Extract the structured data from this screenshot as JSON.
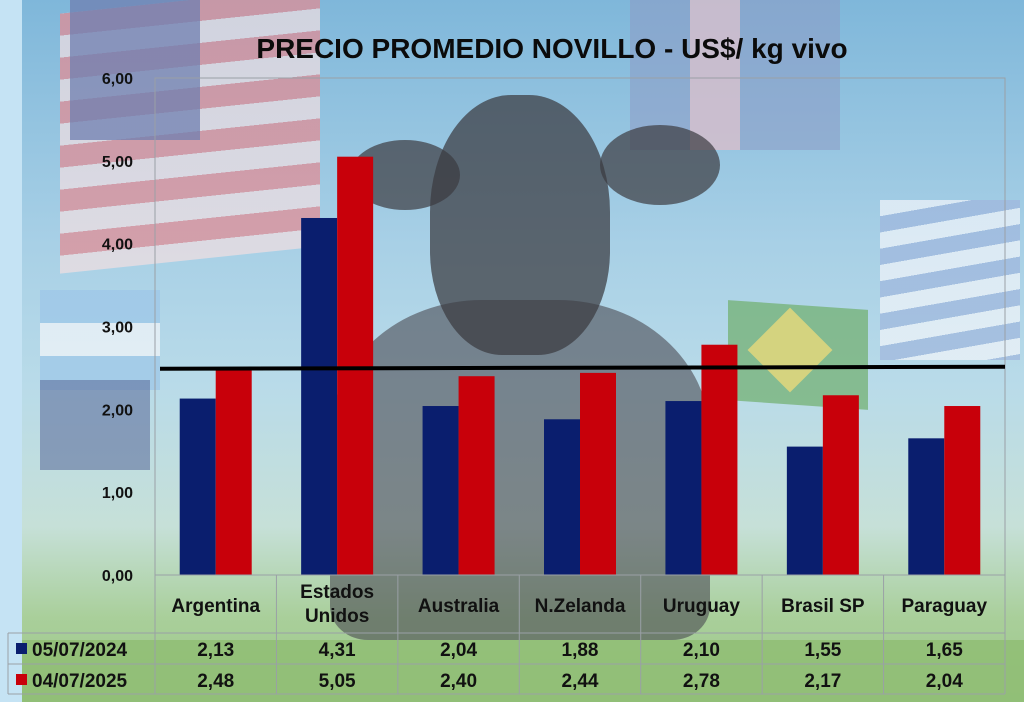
{
  "chart_data": {
    "type": "bar",
    "title": "PRECIO PROMEDIO NOVILLO  - US$/ kg vivo",
    "xlabel": "",
    "ylabel": "",
    "ylim": [
      0,
      6
    ],
    "yticks": [
      "0,00",
      "1,00",
      "2,00",
      "3,00",
      "4,00",
      "5,00",
      "6,00"
    ],
    "categories": [
      [
        "Argentina"
      ],
      [
        "Estados",
        "Unidos"
      ],
      [
        "Australia"
      ],
      [
        "N.Zelanda"
      ],
      [
        "Uruguay"
      ],
      [
        "Brasil SP"
      ],
      [
        "Paraguay"
      ]
    ],
    "series": [
      {
        "name": "05/07/2024",
        "color": "#0a1e6e",
        "values": [
          2.13,
          4.31,
          2.04,
          1.88,
          2.1,
          1.55,
          1.65
        ],
        "labels": [
          "2,13",
          "4,31",
          "2,04",
          "1,88",
          "2,10",
          "1,55",
          "1,65"
        ]
      },
      {
        "name": "04/07/2025",
        "color": "#c8000a",
        "values": [
          2.48,
          5.05,
          2.4,
          2.44,
          2.78,
          2.17,
          2.04
        ],
        "labels": [
          "2,48",
          "5,05",
          "2,40",
          "2,44",
          "2,78",
          "2,17",
          "2,04"
        ]
      }
    ],
    "reference_line": {
      "value": 2.49,
      "color": "#000000"
    },
    "data_table": true,
    "grid": false,
    "legend": "bottom-left, in data table"
  },
  "background_icons": [
    "usa-flag",
    "uk-flag",
    "brazil-flag",
    "uruguay-flag",
    "argentina-flag",
    "new-zealand-flag",
    "cow-photo"
  ]
}
